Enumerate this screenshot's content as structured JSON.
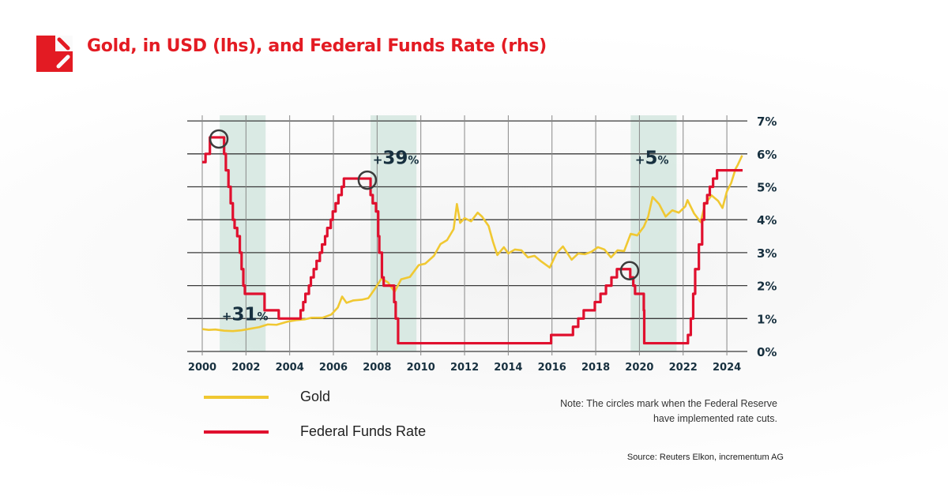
{
  "header": {
    "title": "Gold, in USD (lhs), and Federal Funds Rate (rhs)",
    "logo_icon": "incrementum-logo-icon",
    "brand_color": "#e31b23"
  },
  "chart_data": {
    "type": "line",
    "title": "Gold, in USD (lhs), and Federal Funds Rate (rhs)",
    "x_ticks": [
      "2000",
      "2002",
      "2004",
      "2006",
      "2008",
      "2010",
      "2012",
      "2014",
      "2016",
      "2018",
      "2020",
      "2022",
      "2024"
    ],
    "xlim": [
      1999.3,
      2024.9
    ],
    "y_right": {
      "ticks": [
        "0%",
        "1%",
        "2%",
        "3%",
        "4%",
        "5%",
        "6%",
        "7%"
      ],
      "ylim": [
        0,
        7
      ]
    },
    "y_left": {
      "ylim": [
        0,
        2940
      ],
      "tick_labels_shown": false
    },
    "grid": true,
    "legend_placement": "bottom-left",
    "series": [
      {
        "name": "Gold",
        "axis": "left",
        "color": "#f0c832",
        "step": false,
        "x": [
          2000.0,
          2000.3,
          2000.6,
          2001.0,
          2001.4,
          2001.8,
          2002.2,
          2002.6,
          2003.0,
          2003.4,
          2003.9,
          2004.3,
          2004.7,
          2005.0,
          2005.5,
          2005.9,
          2006.2,
          2006.4,
          2006.6,
          2006.9,
          2007.3,
          2007.6,
          2007.9,
          2008.2,
          2008.5,
          2008.8,
          2009.1,
          2009.5,
          2009.9,
          2010.2,
          2010.6,
          2010.9,
          2011.2,
          2011.5,
          2011.65,
          2011.8,
          2012.0,
          2012.3,
          2012.6,
          2012.8,
          2013.1,
          2013.3,
          2013.5,
          2013.8,
          2014.0,
          2014.3,
          2014.6,
          2014.9,
          2015.2,
          2015.5,
          2015.9,
          2016.2,
          2016.5,
          2016.9,
          2017.2,
          2017.5,
          2017.8,
          2018.1,
          2018.4,
          2018.7,
          2019.0,
          2019.3,
          2019.6,
          2019.9,
          2020.2,
          2020.4,
          2020.6,
          2020.9,
          2021.2,
          2021.5,
          2021.8,
          2022.1,
          2022.2,
          2022.5,
          2022.8,
          2023.0,
          2023.3,
          2023.6,
          2023.8,
          2024.0,
          2024.2,
          2024.4,
          2024.5,
          2024.7
        ],
        "values": [
          285,
          275,
          280,
          265,
          260,
          270,
          290,
          310,
          345,
          340,
          380,
          400,
          410,
          430,
          430,
          470,
          560,
          700,
          620,
          650,
          660,
          680,
          800,
          930,
          880,
          760,
          920,
          950,
          1100,
          1120,
          1220,
          1370,
          1420,
          1560,
          1880,
          1640,
          1700,
          1660,
          1770,
          1720,
          1600,
          1400,
          1230,
          1330,
          1250,
          1300,
          1290,
          1200,
          1220,
          1150,
          1070,
          1250,
          1340,
          1170,
          1250,
          1240,
          1270,
          1330,
          1300,
          1200,
          1290,
          1280,
          1500,
          1480,
          1590,
          1720,
          1970,
          1880,
          1720,
          1800,
          1770,
          1850,
          1930,
          1760,
          1650,
          1880,
          1990,
          1920,
          1830,
          2040,
          2150,
          2330,
          2380,
          2500
        ]
      },
      {
        "name": "Federal Funds Rate",
        "axis": "right",
        "color": "#e0102e",
        "step": true,
        "x": [
          2000.0,
          2000.15,
          2000.35,
          2001.0,
          2001.08,
          2001.2,
          2001.3,
          2001.4,
          2001.48,
          2001.6,
          2001.72,
          2001.8,
          2001.88,
          2001.95,
          2002.85,
          2003.5,
          2004.5,
          2004.62,
          2004.72,
          2004.88,
          2004.97,
          2005.1,
          2005.23,
          2005.38,
          2005.48,
          2005.62,
          2005.72,
          2005.88,
          2005.97,
          2006.1,
          2006.23,
          2006.38,
          2006.48,
          2007.7,
          2007.8,
          2007.95,
          2008.05,
          2008.1,
          2008.22,
          2008.3,
          2008.78,
          2008.85,
          2008.96,
          2015.96,
          2016.96,
          2017.2,
          2017.45,
          2017.96,
          2018.22,
          2018.47,
          2018.72,
          2018.97,
          2019.58,
          2019.72,
          2019.8,
          2020.2,
          2020.22,
          2022.22,
          2022.35,
          2022.46,
          2022.55,
          2022.72,
          2022.87,
          2022.96,
          2023.1,
          2023.22,
          2023.37,
          2023.55,
          2024.72
        ],
        "values": [
          5.75,
          6.0,
          6.5,
          6.0,
          5.5,
          5.0,
          4.5,
          4.0,
          3.75,
          3.5,
          3.0,
          2.5,
          2.0,
          1.75,
          1.25,
          1.0,
          1.25,
          1.5,
          1.75,
          2.0,
          2.25,
          2.5,
          2.75,
          3.0,
          3.25,
          3.5,
          3.75,
          4.0,
          4.25,
          4.5,
          4.75,
          5.0,
          5.25,
          4.75,
          4.5,
          4.25,
          3.5,
          3.0,
          2.25,
          2.0,
          1.5,
          1.0,
          0.25,
          0.5,
          0.75,
          1.0,
          1.25,
          1.5,
          1.75,
          2.0,
          2.25,
          2.5,
          2.25,
          2.0,
          1.75,
          1.25,
          0.25,
          0.5,
          1.0,
          1.75,
          2.5,
          3.25,
          4.0,
          4.5,
          4.75,
          5.0,
          5.25,
          5.5,
          5.5
        ]
      }
    ],
    "shaded_periods": [
      [
        2000.8,
        2002.9
      ],
      [
        2007.7,
        2009.8
      ],
      [
        2019.6,
        2021.7
      ]
    ],
    "shade_color": "#d3e6df",
    "rate_cut_markers": [
      {
        "x": 2000.76,
        "y": 6.5
      },
      {
        "x": 2007.55,
        "y": 5.25
      },
      {
        "x": 2019.55,
        "y": 2.5
      }
    ],
    "annotations": [
      {
        "sign": "+",
        "value": "31",
        "unit": "%",
        "x": 2000.9,
        "y": 0.95
      },
      {
        "sign": "+",
        "value": "39",
        "unit": "%",
        "x": 2007.8,
        "y": 5.7
      },
      {
        "sign": "+",
        "value": "5",
        "unit": "%",
        "x": 2019.8,
        "y": 5.7
      }
    ],
    "tick_color": "#17303f"
  },
  "legend": {
    "items": [
      {
        "label": "Gold",
        "color": "#f0c832"
      },
      {
        "label": "Federal Funds Rate",
        "color": "#e0102e"
      }
    ]
  },
  "note": "Note: The circles mark when the Federal Reserve have implemented rate cuts.",
  "source": "Source: Reuters Elkon, incrementum AG"
}
